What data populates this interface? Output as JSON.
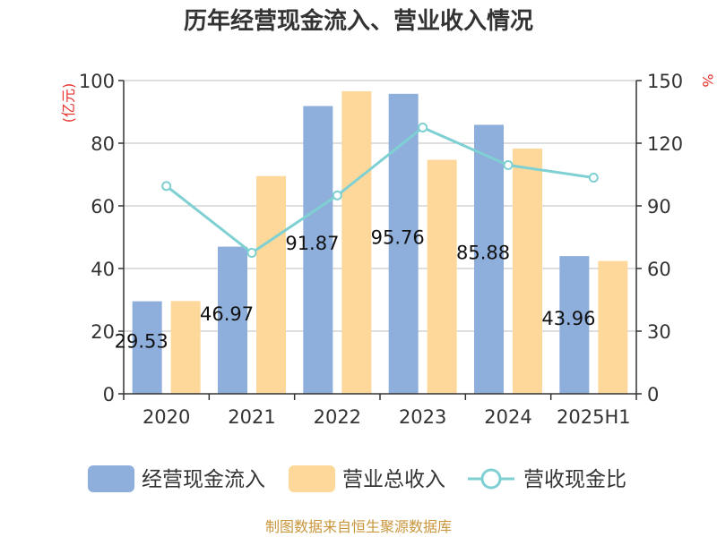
{
  "title": "历年经营现金流入、营业收入情况",
  "source": "制图数据来自恒生聚源数据库",
  "colors": {
    "cash": "#8eaedb",
    "revenue": "#fdd89a",
    "ratio": "#7fd0d3",
    "axis": "#333333",
    "unit": "#e8322b"
  },
  "chart_data": {
    "type": "bar",
    "title": "历年经营现金流入、营业收入情况",
    "categories": [
      "2020",
      "2021",
      "2022",
      "2023",
      "2024",
      "2025H1"
    ],
    "y_left": {
      "unit": "(亿元)",
      "ylim": [
        0,
        100
      ],
      "ticks": [
        "0",
        "20",
        "40",
        "60",
        "80",
        "100"
      ]
    },
    "y_right": {
      "unit": "%",
      "ylim": [
        0,
        150
      ],
      "ticks": [
        "0",
        "30",
        "60",
        "90",
        "120",
        "150"
      ]
    },
    "grid": true,
    "legend_position": "bottom",
    "series": [
      {
        "name": "经营现金流入",
        "type": "bar",
        "axis": "left",
        "values": [
          29.53,
          46.97,
          91.87,
          95.76,
          85.88,
          43.96
        ],
        "labels": [
          "29.53(",
          "46.97",
          "91.87(",
          "95.76(",
          "85.88(",
          "43.96("
        ]
      },
      {
        "name": "营业总收入",
        "type": "bar",
        "axis": "left",
        "values": [
          29.6,
          69.5,
          96.6,
          74.7,
          78.3,
          42.4
        ]
      },
      {
        "name": "营收现金比",
        "type": "line",
        "axis": "right",
        "values": [
          99.5,
          67.5,
          95.0,
          127.5,
          109.5,
          103.5
        ]
      }
    ]
  }
}
